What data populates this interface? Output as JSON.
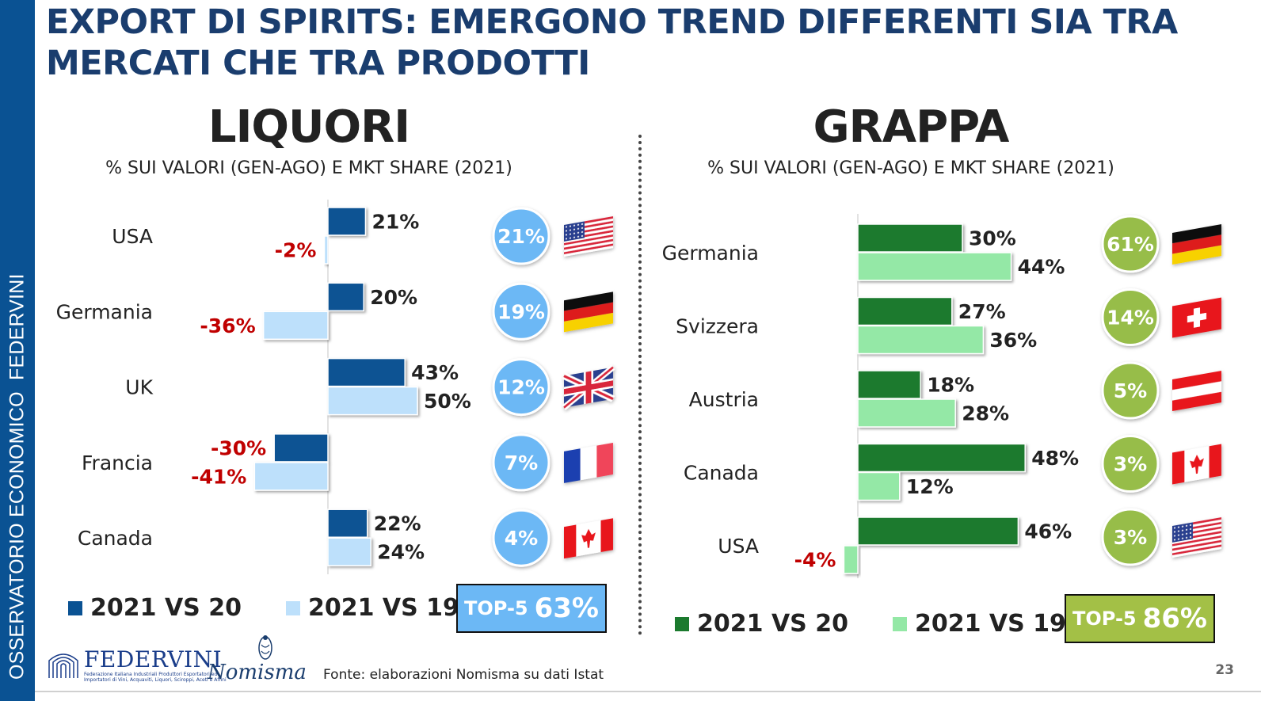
{
  "sidebar": {
    "text": "OSSERVATORIO ECONOMICO  FEDERVINI"
  },
  "title": "EXPORT DI SPIRITS: EMERGONO TREND DIFFERENTI SIA TRA MERCATI CHE TRA PRODOTTI",
  "source": "Fonte: elaborazioni Nomisma su dati Istat",
  "page_number": "23",
  "logos": {
    "federvini_name": "FEDERVINI",
    "federvini_tagline": "Federazione Italiana Industriali Produttori Esportatori ed Importatori di Vini, Acquaviti, Liquori, Sciroppi, Aceti e Affini",
    "nomisma_name": "Nomisma"
  },
  "colors": {
    "sidebar": "#0a5293",
    "title": "#1a3d6e",
    "liquori_vs20": "#0a5293",
    "liquori_vs19": "#bde0fb",
    "liquori_bubble": "#6cb8f5",
    "grappa_vs20": "#1b7a2e",
    "grappa_vs19": "#94e8a6",
    "grappa_bubble": "#97bd4a",
    "negative_label": "#c00000"
  },
  "chart_data": [
    {
      "type": "bar",
      "orientation": "horizontal",
      "title": "LIQUORI",
      "subtitle": "% SUI VALORI (GEN-AGO) E MKT SHARE (2021)",
      "categories": [
        "USA",
        "Germania",
        "UK",
        "Francia",
        "Canada"
      ],
      "series": [
        {
          "name": "2021 VS 20",
          "values": [
            21,
            20,
            43,
            -30,
            22
          ]
        },
        {
          "name": "2021 VS 19",
          "values": [
            -2,
            -36,
            50,
            -41,
            24
          ]
        }
      ],
      "market_share": [
        21,
        19,
        12,
        7,
        4
      ],
      "flags": [
        "usa-flag-icon",
        "germany-flag-icon",
        "uk-flag-icon",
        "france-flag-icon",
        "canada-flag-icon"
      ],
      "legend": [
        "2021 VS 20",
        "2021 VS 19"
      ],
      "legend_position": "bottom",
      "top5": {
        "label": "TOP-5",
        "value": "63%"
      },
      "unit": "%"
    },
    {
      "type": "bar",
      "orientation": "horizontal",
      "title": "GRAPPA",
      "subtitle": "% SUI VALORI (GEN-AGO) E MKT SHARE (2021)",
      "categories": [
        "Germania",
        "Svizzera",
        "Austria",
        "Canada",
        "USA"
      ],
      "series": [
        {
          "name": "2021 VS 20",
          "values": [
            30,
            27,
            18,
            48,
            46
          ]
        },
        {
          "name": "2021 VS 19",
          "values": [
            44,
            36,
            28,
            12,
            -4
          ]
        }
      ],
      "market_share": [
        61,
        14,
        5,
        3,
        3
      ],
      "flags": [
        "germany-flag-icon",
        "switzerland-flag-icon",
        "austria-flag-icon",
        "canada-flag-icon",
        "usa-flag-icon"
      ],
      "legend": [
        "2021 VS 20",
        "2021 VS 19"
      ],
      "legend_position": "bottom",
      "top5": {
        "label": "TOP-5",
        "value": "86%"
      },
      "unit": "%"
    }
  ]
}
